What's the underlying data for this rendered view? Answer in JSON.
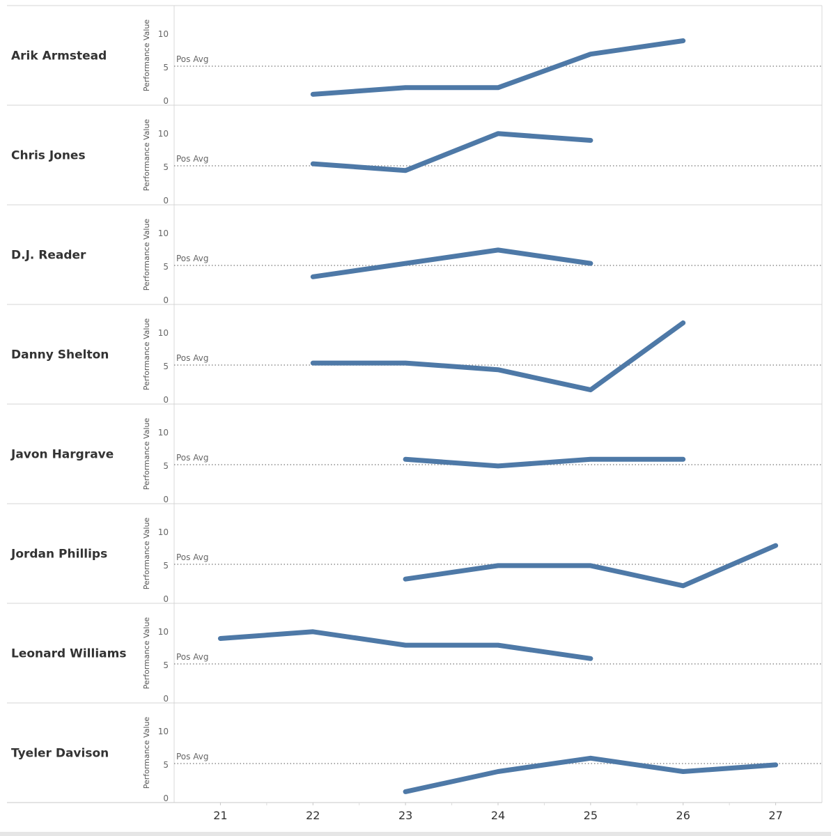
{
  "chart_data": {
    "type": "line",
    "y_axis_title": "Performance Value",
    "y_ticks": [
      0,
      5,
      10
    ],
    "ylim": [
      0,
      13
    ],
    "x_ticks": [
      21,
      22,
      23,
      24,
      25,
      26,
      27
    ],
    "xlim": [
      20.5,
      27.5
    ],
    "reference_line": {
      "label": "Pos Avg",
      "value": 5.2
    },
    "line_color": "#4e79a7",
    "panels": [
      {
        "name": "Arik Armstead",
        "x": [
          22,
          23,
          24,
          25,
          26
        ],
        "values": [
          1,
          2,
          2,
          7,
          9
        ]
      },
      {
        "name": "Chris Jones",
        "x": [
          22,
          23,
          24,
          25
        ],
        "values": [
          5.5,
          4.5,
          10,
          9
        ]
      },
      {
        "name": "D.J. Reader",
        "x": [
          22,
          23,
          24,
          25
        ],
        "values": [
          3.5,
          5.5,
          7.5,
          5.5
        ]
      },
      {
        "name": "Danny Shelton",
        "x": [
          22,
          23,
          24,
          25,
          26
        ],
        "values": [
          5.5,
          5.5,
          4.5,
          1.5,
          11.5
        ]
      },
      {
        "name": "Javon Hargrave",
        "x": [
          23,
          24,
          25,
          26
        ],
        "values": [
          6,
          5,
          6,
          6
        ]
      },
      {
        "name": "Jordan Phillips",
        "x": [
          23,
          24,
          25,
          26,
          27
        ],
        "values": [
          3,
          5,
          5,
          2,
          8
        ]
      },
      {
        "name": "Leonard Williams",
        "x": [
          21,
          22,
          23,
          24,
          25
        ],
        "values": [
          9,
          10,
          8,
          8,
          6
        ]
      },
      {
        "name": "Tyeler Davison",
        "x": [
          23,
          24,
          25,
          26,
          27
        ],
        "values": [
          1,
          4,
          6,
          4,
          5
        ]
      }
    ]
  }
}
